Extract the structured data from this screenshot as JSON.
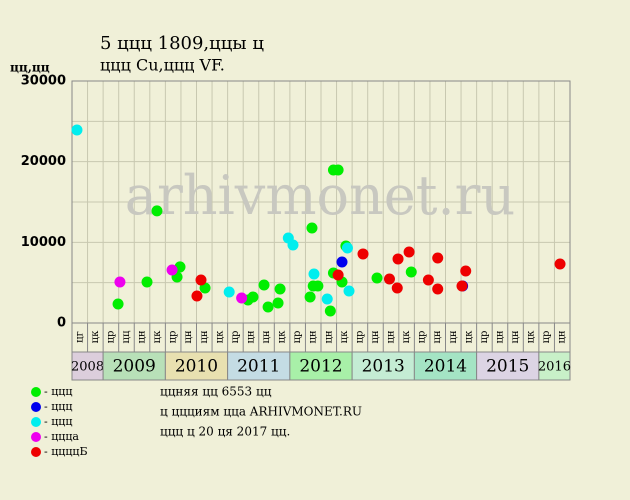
{
  "chart_data": {
    "type": "scatter",
    "title": "5 ццц 1809,ццы ц",
    "subtitle": "ццц Cu,ццц VF.",
    "y_label": "цц,цц",
    "watermark": "arhivmonet.ru",
    "xlim": [
      0,
      32
    ],
    "ylim": [
      0,
      30000
    ],
    "yticks": [
      0,
      10000,
      20000,
      30000
    ],
    "grid": true,
    "years": [
      {
        "label": "2008",
        "color": "#dccedc",
        "columns": [
          "цг",
          "цк"
        ]
      },
      {
        "label": "2009",
        "color": "#b8e0b8",
        "columns": [
          "цр",
          "цц",
          "цн",
          "цк"
        ]
      },
      {
        "label": "2010",
        "color": "#e8e0b0",
        "columns": [
          "цр",
          "цн",
          "цн",
          "цк"
        ]
      },
      {
        "label": "2011",
        "color": "#c4dce4",
        "columns": [
          "цр",
          "цн",
          "цн",
          "цк"
        ]
      },
      {
        "label": "2012",
        "color": "#a8f0a8",
        "columns": [
          "цр",
          "цн",
          "цн",
          "цк"
        ]
      },
      {
        "label": "2013",
        "color": "#c4ecd4",
        "columns": [
          "цр",
          "цн",
          "цн",
          "цк"
        ]
      },
      {
        "label": "2014",
        "color": "#a4e4c4",
        "columns": [
          "цр",
          "цн",
          "цн",
          "цк"
        ]
      },
      {
        "label": "2015",
        "color": "#dcd4e4",
        "columns": [
          "цр",
          "цн",
          "цн",
          "цк"
        ]
      },
      {
        "label": "2016",
        "color": "#c8f0c8",
        "columns": [
          "цр",
          "цн"
        ]
      }
    ],
    "series": [
      {
        "name": "- ццц",
        "color": "#00ee00",
        "x": [
          2.96,
          4.82,
          5.46,
          6.75,
          6.94,
          8.55,
          11.31,
          11.63,
          12.34,
          12.6,
          13.24,
          13.37,
          15.3,
          15.5,
          15.42,
          15.8,
          16.6,
          16.8,
          16.8,
          17.1,
          17.35,
          17.6,
          19.6,
          21.8
        ],
        "values": [
          2360,
          5080,
          13900,
          5700,
          6950,
          4340,
          2850,
          3220,
          4710,
          1980,
          2480,
          4220,
          3220,
          4590,
          11780,
          4590,
          1490,
          6200,
          18970,
          18970,
          5080,
          9550,
          5580,
          6320
        ]
      },
      {
        "name": "- ццц",
        "color": "#0000ee",
        "x": [
          17.35,
          25.1
        ],
        "values": [
          7560,
          4590
        ]
      },
      {
        "name": "- ццц",
        "color": "#00eeee",
        "x": [
          0.32,
          10.1,
          13.9,
          14.2,
          15.55,
          16.4,
          17.8,
          17.7
        ],
        "values": [
          23930,
          3840,
          10540,
          9670,
          6080,
          2980,
          3970,
          9300
        ]
      },
      {
        "name": "- ццца",
        "color": "#ee00ee",
        "x": [
          3.08,
          6.43,
          10.9
        ],
        "values": [
          5080,
          6570,
          3100
        ]
      },
      {
        "name": "- ццццБ",
        "color": "#ee0000",
        "x": [
          8.03,
          8.29,
          17.1,
          18.7,
          20.4,
          20.9,
          20.95,
          21.66,
          22.9,
          23.5,
          23.5,
          25.06,
          25.3,
          31.36
        ],
        "values": [
          3350,
          5330,
          5950,
          8560,
          5460,
          4340,
          7940,
          8800,
          5330,
          4220,
          8060,
          4590,
          6450,
          7320
        ]
      }
    ],
    "notes": [
      "ццняя цц 6553 цц",
      "ц ццциям цца ARHIVMONET.RU",
      "ццц ц 20 ця 2017 цц."
    ]
  }
}
